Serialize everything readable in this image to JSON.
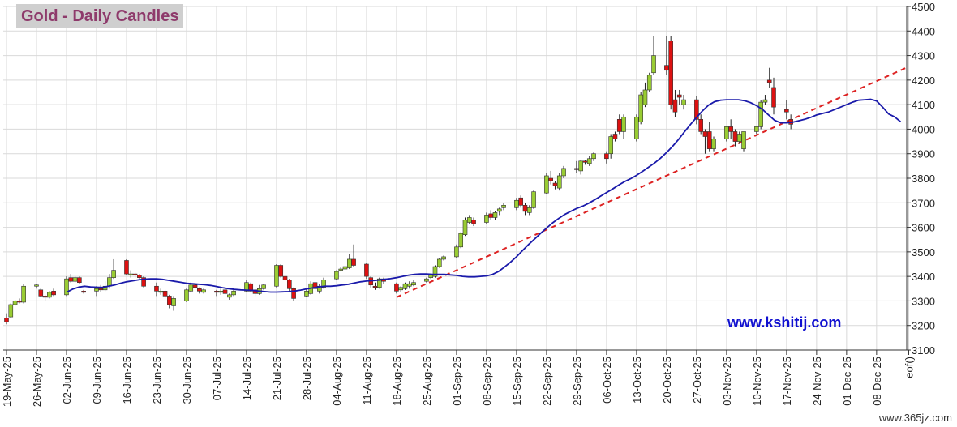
{
  "title": "Gold - Daily Candles",
  "website": "www.kshitij.com",
  "watermark": "www.365jz.com",
  "colors": {
    "up": "#99cc33",
    "down": "#dd1111",
    "ma": "#1a1aaa",
    "trendline": "#dd2222",
    "grid": "#d9d9d9",
    "title_text": "#8e3a6b",
    "title_bg": "#cfcfcf",
    "website_text": "#1010d0"
  },
  "chart_data": {
    "type": "candlestick",
    "title": "Gold - Daily Candles",
    "ylim": [
      3100,
      4500
    ],
    "yticks": [
      3100,
      3200,
      3300,
      3400,
      3500,
      3600,
      3700,
      3800,
      3900,
      4000,
      4100,
      4200,
      4300,
      4400,
      4500
    ],
    "xticks": [
      "19-May-25",
      "26-May-25",
      "02-Jun-25",
      "09-Jun-25",
      "16-Jun-25",
      "23-Jun-25",
      "30-Jun-25",
      "07-Jul-25",
      "14-Jul-25",
      "21-Jul-25",
      "28-Jul-25",
      "04-Aug-25",
      "11-Aug-25",
      "18-Aug-25",
      "25-Aug-25",
      "01-Sep-25",
      "08-Sep-25",
      "15-Sep-25",
      "22-Sep-25",
      "29-Sep-25",
      "06-Oct-25",
      "13-Oct-25",
      "20-Oct-25",
      "27-Oct-25",
      "03-Nov-25",
      "10-Nov-25",
      "17-Nov-25",
      "24-Nov-25",
      "01-Dec-25",
      "08-Dec-25",
      "eof()"
    ],
    "grid": true,
    "candles": {
      "date": [
        "19-May-25",
        "20-May-25",
        "21-May-25",
        "22-May-25",
        "23-May-25",
        "26-May-25",
        "27-May-25",
        "28-May-25",
        "29-May-25",
        "30-May-25",
        "02-Jun-25",
        "03-Jun-25",
        "04-Jun-25",
        "05-Jun-25",
        "06-Jun-25",
        "09-Jun-25",
        "10-Jun-25",
        "11-Jun-25",
        "12-Jun-25",
        "13-Jun-25",
        "16-Jun-25",
        "17-Jun-25",
        "18-Jun-25",
        "19-Jun-25",
        "20-Jun-25",
        "23-Jun-25",
        "24-Jun-25",
        "25-Jun-25",
        "26-Jun-25",
        "27-Jun-25",
        "30-Jun-25",
        "01-Jul-25",
        "02-Jul-25",
        "03-Jul-25",
        "04-Jul-25",
        "07-Jul-25",
        "08-Jul-25",
        "09-Jul-25",
        "10-Jul-25",
        "11-Jul-25",
        "14-Jul-25",
        "15-Jul-25",
        "16-Jul-25",
        "17-Jul-25",
        "18-Jul-25",
        "21-Jul-25",
        "22-Jul-25",
        "23-Jul-25",
        "24-Jul-25",
        "25-Jul-25",
        "28-Jul-25",
        "29-Jul-25",
        "30-Jul-25",
        "31-Jul-25",
        "01-Aug-25",
        "04-Aug-25",
        "05-Aug-25",
        "06-Aug-25",
        "07-Aug-25",
        "08-Aug-25",
        "11-Aug-25",
        "12-Aug-25",
        "13-Aug-25",
        "14-Aug-25",
        "15-Aug-25",
        "18-Aug-25",
        "19-Aug-25",
        "20-Aug-25",
        "21-Aug-25",
        "22-Aug-25",
        "25-Aug-25",
        "26-Aug-25",
        "27-Aug-25",
        "28-Aug-25",
        "29-Aug-25",
        "01-Sep-25",
        "02-Sep-25",
        "03-Sep-25",
        "04-Sep-25",
        "05-Sep-25",
        "08-Sep-25",
        "09-Sep-25",
        "10-Sep-25",
        "11-Sep-25",
        "12-Sep-25",
        "15-Sep-25",
        "16-Sep-25",
        "17-Sep-25",
        "18-Sep-25",
        "19-Sep-25",
        "22-Sep-25",
        "23-Sep-25",
        "24-Sep-25",
        "25-Sep-25",
        "26-Sep-25",
        "29-Sep-25",
        "30-Sep-25",
        "01-Oct-25",
        "02-Oct-25",
        "03-Oct-25",
        "06-Oct-25",
        "07-Oct-25",
        "08-Oct-25",
        "09-Oct-25",
        "10-Oct-25",
        "13-Oct-25",
        "14-Oct-25",
        "15-Oct-25",
        "16-Oct-25",
        "17-Oct-25",
        "20-Oct-25",
        "21-Oct-25",
        "22-Oct-25",
        "23-Oct-25",
        "24-Oct-25",
        "27-Oct-25",
        "28-Oct-25",
        "29-Oct-25",
        "30-Oct-25",
        "31-Oct-25",
        "03-Nov-25",
        "04-Nov-25",
        "05-Nov-25",
        "06-Nov-25",
        "07-Nov-25",
        "10-Nov-25",
        "11-Nov-25",
        "12-Nov-25",
        "13-Nov-25",
        "14-Nov-25",
        "17-Nov-25",
        "18-Nov-25"
      ],
      "open": [
        3230,
        3235,
        3285,
        3300,
        3295,
        3360,
        3345,
        3320,
        3315,
        3340,
        3325,
        3395,
        3380,
        3395,
        3340,
        3340,
        3350,
        3345,
        3360,
        3395,
        3465,
        3410,
        3410,
        3405,
        3395,
        3360,
        3335,
        3340,
        3320,
        3280,
        3300,
        3340,
        3365,
        3350,
        3335,
        3340,
        3335,
        3345,
        3315,
        3325,
        3340,
        3370,
        3345,
        3330,
        3350,
        3360,
        3445,
        3400,
        3385,
        3350,
        3320,
        3330,
        3375,
        3340,
        3355,
        3390,
        3425,
        3430,
        3435,
        3470,
        3450,
        3395,
        3360,
        3355,
        3390,
        3370,
        3345,
        3350,
        3360,
        3365,
        3380,
        3395,
        3400,
        3440,
        3470,
        3480,
        3520,
        3570,
        3620,
        3630,
        3620,
        3655,
        3640,
        3665,
        3680,
        3680,
        3720,
        3690,
        3660,
        3680,
        3740,
        3800,
        3780,
        3760,
        3810,
        3840,
        3830,
        3870,
        3860,
        3880,
        3900,
        3900,
        3980,
        4040,
        3990,
        3960,
        4030,
        4100,
        4160,
        4230,
        4260,
        4360,
        4120,
        4140,
        4100,
        4120,
        4040,
        3990,
        3990,
        3920,
        3960,
        4010,
        3990,
        3950,
        3920,
        3990,
        4010,
        4110,
        4200,
        4170,
        4080,
        4040
      ],
      "close": [
        3215,
        3285,
        3300,
        3295,
        3360,
        3365,
        3320,
        3315,
        3335,
        3325,
        3390,
        3380,
        3395,
        3375,
        3335,
        3350,
        3345,
        3360,
        3395,
        3425,
        3410,
        3410,
        3405,
        3395,
        3360,
        3340,
        3340,
        3320,
        3285,
        3310,
        3345,
        3365,
        3355,
        3340,
        3345,
        3335,
        3340,
        3330,
        3325,
        3340,
        3375,
        3340,
        3330,
        3350,
        3365,
        3445,
        3400,
        3385,
        3350,
        3310,
        3340,
        3370,
        3350,
        3360,
        3385,
        3420,
        3430,
        3440,
        3470,
        3445,
        3400,
        3365,
        3355,
        3390,
        3380,
        3340,
        3355,
        3370,
        3370,
        3375,
        3390,
        3405,
        3440,
        3470,
        3480,
        3520,
        3575,
        3630,
        3640,
        3615,
        3650,
        3640,
        3660,
        3675,
        3690,
        3710,
        3690,
        3665,
        3680,
        3745,
        3810,
        3790,
        3770,
        3810,
        3840,
        3835,
        3870,
        3865,
        3880,
        3900,
        3880,
        3970,
        3960,
        3990,
        4050,
        4050,
        4140,
        4160,
        4220,
        4300,
        4240,
        4100,
        4070,
        4130,
        4120,
        4040,
        3990,
        3970,
        3920,
        3960,
        4010,
        3990,
        3950,
        3980,
        3990,
        4010,
        4110,
        4120,
        4190,
        4090,
        4070,
        4020
      ],
      "high": [
        3250,
        3290,
        3305,
        3310,
        3370,
        3370,
        3350,
        3325,
        3340,
        3350,
        3400,
        3410,
        3400,
        3400,
        3345,
        3360,
        3365,
        3380,
        3410,
        3470,
        3470,
        3425,
        3415,
        3410,
        3400,
        3375,
        3350,
        3345,
        3325,
        3320,
        3350,
        3375,
        3370,
        3355,
        3350,
        3345,
        3350,
        3350,
        3330,
        3345,
        3385,
        3375,
        3350,
        3365,
        3370,
        3450,
        3450,
        3405,
        3390,
        3355,
        3350,
        3380,
        3380,
        3370,
        3395,
        3425,
        3440,
        3450,
        3490,
        3530,
        3455,
        3400,
        3375,
        3395,
        3395,
        3375,
        3360,
        3375,
        3380,
        3385,
        3395,
        3410,
        3445,
        3475,
        3485,
        3530,
        3580,
        3640,
        3650,
        3640,
        3660,
        3670,
        3665,
        3680,
        3700,
        3720,
        3730,
        3700,
        3690,
        3750,
        3820,
        3830,
        3790,
        3820,
        3850,
        3870,
        3875,
        3875,
        3890,
        3905,
        3910,
        3980,
        3990,
        4060,
        4060,
        4060,
        4150,
        4190,
        4230,
        4380,
        4380,
        4380,
        4160,
        4160,
        4140,
        4135,
        4060,
        4000,
        4030,
        3970,
        4010,
        4040,
        4000,
        3990,
        3960,
        4010,
        4120,
        4140,
        4250,
        4210,
        4120,
        4060
      ],
      "low": [
        3205,
        3230,
        3280,
        3290,
        3290,
        3350,
        3315,
        3300,
        3310,
        3320,
        3320,
        3375,
        3375,
        3370,
        3330,
        3320,
        3335,
        3340,
        3350,
        3390,
        3405,
        3395,
        3395,
        3390,
        3355,
        3320,
        3325,
        3310,
        3270,
        3260,
        3295,
        3335,
        3350,
        3330,
        3330,
        3320,
        3325,
        3325,
        3305,
        3320,
        3335,
        3335,
        3320,
        3325,
        3345,
        3355,
        3395,
        3380,
        3340,
        3300,
        3315,
        3325,
        3335,
        3330,
        3350,
        3385,
        3420,
        3420,
        3430,
        3440,
        3390,
        3355,
        3345,
        3350,
        3370,
        3330,
        3335,
        3345,
        3350,
        3360,
        3375,
        3390,
        3395,
        3435,
        3465,
        3475,
        3515,
        3565,
        3615,
        3605,
        3615,
        3630,
        3630,
        3650,
        3670,
        3670,
        3680,
        3650,
        3650,
        3675,
        3735,
        3775,
        3755,
        3750,
        3800,
        3820,
        3815,
        3855,
        3850,
        3870,
        3860,
        3880,
        3950,
        3980,
        3960,
        3950,
        4020,
        4090,
        4150,
        4220,
        4220,
        4080,
        4050,
        4100,
        4080,
        4020,
        3980,
        3900,
        3910,
        3910,
        3950,
        3960,
        3930,
        3940,
        3910,
        3980,
        4000,
        4100,
        4170,
        4060,
        4040,
        4000
      ]
    },
    "moving_average": {
      "start_date": "02-Jun-25",
      "values": [
        3335,
        3348,
        3356,
        3360,
        3357,
        3356,
        3355,
        3360,
        3365,
        3372,
        3378,
        3382,
        3386,
        3389,
        3390,
        3390,
        3388,
        3384,
        3380,
        3376,
        3372,
        3370,
        3368,
        3366,
        3363,
        3359,
        3354,
        3350,
        3347,
        3345,
        3344,
        3343,
        3340,
        3338,
        3336,
        3336,
        3337,
        3338,
        3340,
        3344,
        3349,
        3353,
        3357,
        3360,
        3360,
        3362,
        3365,
        3368,
        3373,
        3378,
        3381,
        3383,
        3385,
        3388,
        3391,
        3395,
        3400,
        3405,
        3408,
        3410,
        3410,
        3408,
        3408,
        3408,
        3406,
        3404,
        3400,
        3398,
        3398,
        3400,
        3402,
        3408,
        3420,
        3438,
        3458,
        3480,
        3505,
        3530,
        3552,
        3575,
        3597,
        3618,
        3636,
        3652,
        3665,
        3677,
        3686,
        3698,
        3712,
        3727,
        3742,
        3756,
        3772,
        3786,
        3798,
        3812,
        3828,
        3845,
        3862,
        3882,
        3905,
        3930,
        3958,
        3990,
        4020,
        4048,
        4075,
        4098,
        4112,
        4118,
        4120,
        4120,
        4120,
        4116,
        4108,
        4096,
        4080,
        4058,
        4036,
        4026,
        4026,
        4028,
        4034,
        4040,
        4048,
        4058,
        4064,
        4070,
        4080,
        4090,
        4100,
        4110,
        4118,
        4120,
        4122,
        4115,
        4090,
        4062,
        4050,
        4030
      ]
    },
    "trendline": {
      "from": {
        "date": "18-Aug-25",
        "value": 3315
      },
      "to": {
        "date": "eof()",
        "value": 4255
      }
    }
  }
}
